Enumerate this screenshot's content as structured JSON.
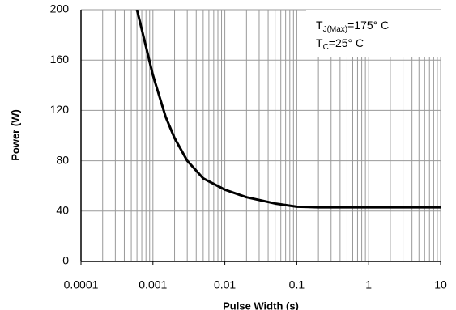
{
  "chart_data": {
    "type": "line",
    "log_x": true,
    "grid": true,
    "xlabel": "Pulse Width (s)",
    "ylabel": "Power (W)",
    "xlim": [
      0.0001,
      10
    ],
    "xticks": [
      0.0001,
      0.001,
      0.01,
      0.1,
      1,
      10
    ],
    "ylim": [
      0,
      200
    ],
    "yticks": [
      0,
      40,
      80,
      120,
      160,
      200
    ],
    "annotations": [
      {
        "text": "T",
        "sub": "J(Max)",
        "rest": "=175° C"
      },
      {
        "text": "T",
        "sub": "C",
        "rest": "=25° C"
      }
    ],
    "series": [
      {
        "color": "#000000",
        "x": [
          0.0006,
          0.001,
          0.0015,
          0.002,
          0.003,
          0.005,
          0.01,
          0.02,
          0.05,
          0.1,
          0.2,
          1,
          10
        ],
        "values": [
          200,
          148,
          115,
          98,
          80,
          66,
          57,
          51,
          46,
          43.5,
          43,
          43,
          43
        ]
      }
    ]
  }
}
